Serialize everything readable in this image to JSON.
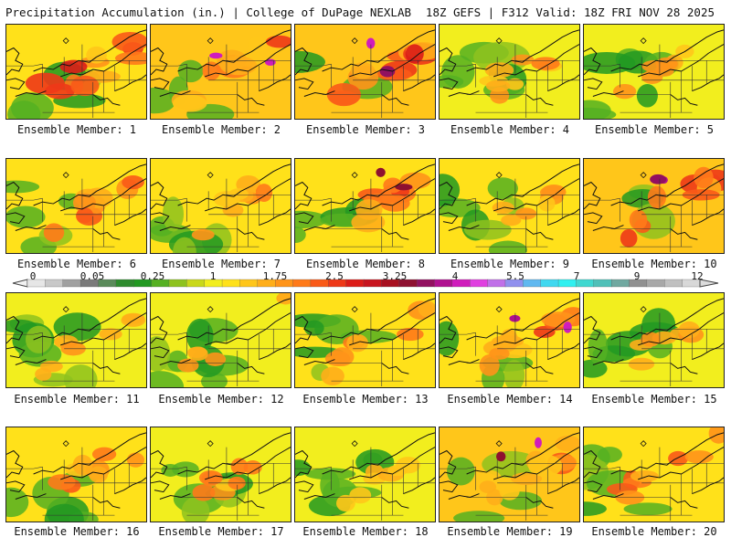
{
  "header": {
    "title_left": "Precipitation Accumulation (in.) | College of DuPage NEXLAB",
    "title_right": "18Z GEFS | F312 Valid: 18Z FRI NOV 28 2025"
  },
  "colorbar": {
    "unit": "in.",
    "labels": [
      "0",
      "0.05",
      "0.25",
      "1",
      "1.75",
      "2.5",
      "3.25",
      "4",
      "5.5",
      "7",
      "9",
      "12"
    ],
    "colors": [
      "#e6e6e6",
      "#c8c8c8",
      "#a0a0a0",
      "#7a7a7a",
      "#5a8a5a",
      "#2e8b2e",
      "#229922",
      "#55b022",
      "#8ec21e",
      "#c9d81a",
      "#f2ee1e",
      "#ffe11a",
      "#ffc61a",
      "#ffae1a",
      "#ff9419",
      "#ff7a19",
      "#f95a18",
      "#ee3818",
      "#dc1c18",
      "#c8141e",
      "#a81020",
      "#8e1030",
      "#921060",
      "#b01090",
      "#d01cbc",
      "#e040e0",
      "#c070e8",
      "#9090ee",
      "#60b8f0",
      "#40d8f0",
      "#30f0f0",
      "#40d8d0",
      "#50c0b8",
      "#70a8a0",
      "#909090",
      "#a8a8a8",
      "#c0c0c0",
      "#d8d8d8"
    ]
  },
  "members": [
    {
      "label": "Ensemble Member: 1",
      "level": 1.0,
      "hot": 0.85
    },
    {
      "label": "Ensemble Member: 2",
      "level": 1.3,
      "hot": 0.75
    },
    {
      "label": "Ensemble Member: 3",
      "level": 1.5,
      "hot": 0.85
    },
    {
      "label": "Ensemble Member: 4",
      "level": 0.7,
      "hot": 0.45
    },
    {
      "label": "Ensemble Member: 5",
      "level": 0.65,
      "hot": 0.35
    },
    {
      "label": "Ensemble Member: 6",
      "level": 1.05,
      "hot": 0.6
    },
    {
      "label": "Ensemble Member: 7",
      "level": 0.95,
      "hot": 0.45
    },
    {
      "label": "Ensemble Member: 8",
      "level": 1.15,
      "hot": 0.65
    },
    {
      "label": "Ensemble Member: 9",
      "level": 0.75,
      "hot": 0.4
    },
    {
      "label": "Ensemble Member: 10",
      "level": 1.35,
      "hot": 0.8
    },
    {
      "label": "Ensemble Member: 11",
      "level": 0.6,
      "hot": 0.35
    },
    {
      "label": "Ensemble Member: 12",
      "level": 0.45,
      "hot": 0.25
    },
    {
      "label": "Ensemble Member: 13",
      "level": 0.85,
      "hot": 0.45
    },
    {
      "label": "Ensemble Member: 14",
      "level": 1.2,
      "hot": 0.75
    },
    {
      "label": "Ensemble Member: 15",
      "level": 0.65,
      "hot": 0.35
    },
    {
      "label": "Ensemble Member: 16",
      "level": 0.85,
      "hot": 0.55
    },
    {
      "label": "Ensemble Member: 17",
      "level": 0.7,
      "hot": 0.45
    },
    {
      "label": "Ensemble Member: 18",
      "level": 0.6,
      "hot": 0.35
    },
    {
      "label": "Ensemble Member: 19",
      "level": 1.25,
      "hot": 0.7
    },
    {
      "label": "Ensemble Member: 20",
      "level": 0.85,
      "hot": 0.55
    }
  ]
}
